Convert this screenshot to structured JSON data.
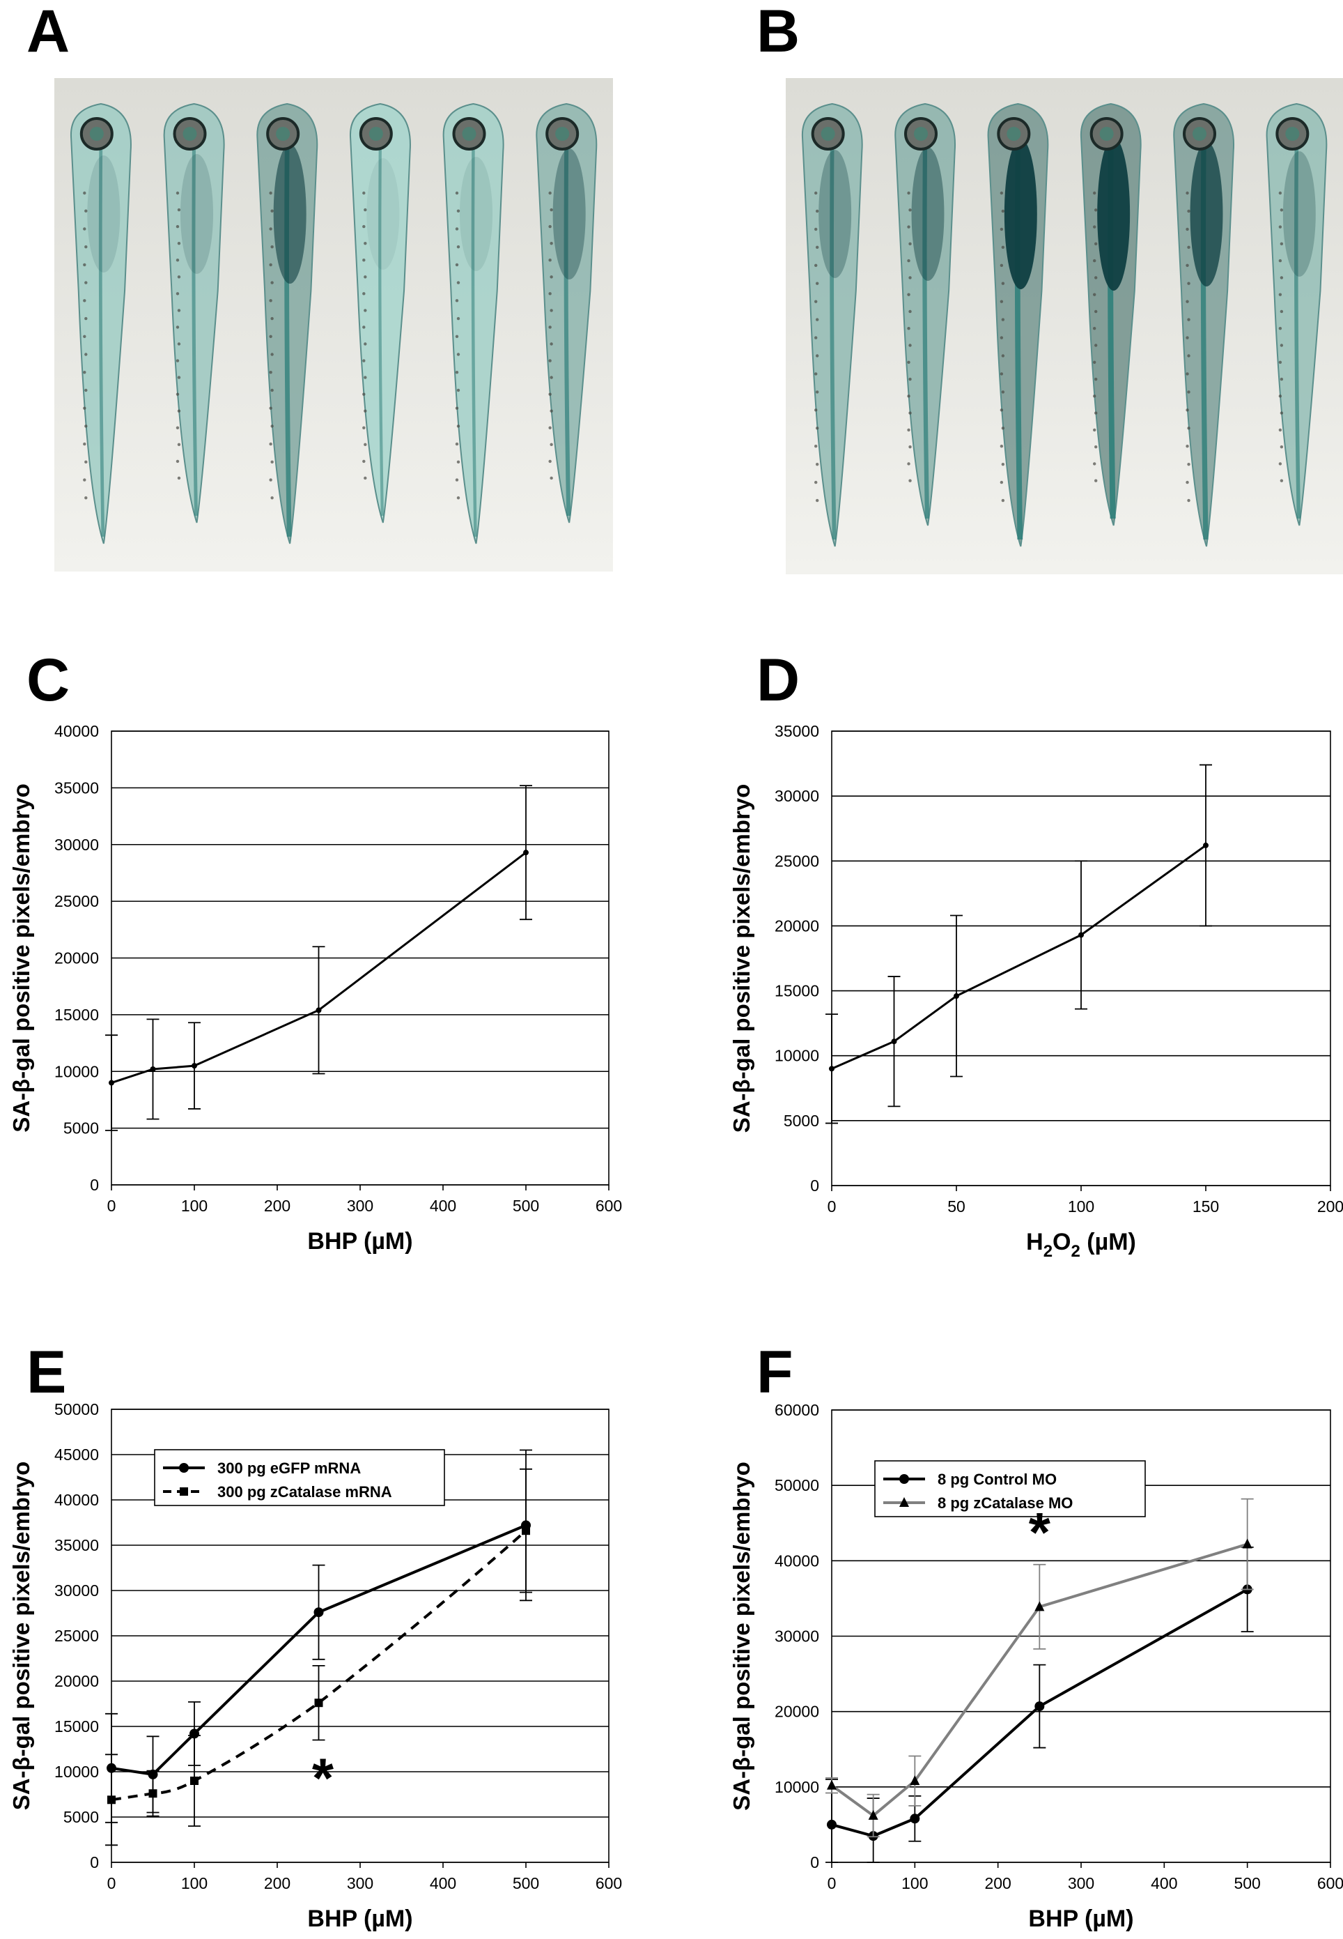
{
  "panels": {
    "A": "A",
    "B": "B",
    "C": "C",
    "D": "D",
    "E": "E",
    "F": "F"
  },
  "photos": {
    "A": {
      "larvae": 6,
      "stain_level": [
        0.35,
        0.4,
        0.75,
        0.25,
        0.3,
        0.6
      ]
    },
    "B": {
      "larvae": 6,
      "stain_level": [
        0.55,
        0.65,
        0.95,
        1.0,
        0.85,
        0.5
      ]
    }
  },
  "colors": {
    "stain": "#1f6f6f",
    "series_black": "#000000",
    "series_gray": "#808080",
    "grid": "#000000"
  },
  "chart_data": [
    {
      "id": "C",
      "type": "line",
      "xlabel": "BHP (µM)",
      "ylabel": "SA-β-gal positive pixels/embryo",
      "xlim": [
        0,
        600
      ],
      "ylim": [
        0,
        40000
      ],
      "xticks": [
        0,
        100,
        200,
        300,
        400,
        500,
        600
      ],
      "yticks": [
        0,
        5000,
        10000,
        15000,
        20000,
        25000,
        30000,
        35000,
        40000
      ],
      "xtick_labels": [
        "0",
        "100",
        "200",
        "300",
        "400",
        "500",
        "600"
      ],
      "ytick_labels": [
        "0",
        "5000",
        "10000",
        "15000",
        "20000",
        "25000",
        "30000",
        "35000",
        "40000"
      ],
      "grid": "horizontal",
      "series": [
        {
          "x": [
            0,
            50,
            100,
            250,
            500
          ],
          "y": [
            9000,
            10200,
            10500,
            15400,
            29300
          ],
          "err": [
            4200,
            4400,
            3800,
            5600,
            5900
          ],
          "marker": "circle",
          "dash": false,
          "color": "#000000"
        }
      ]
    },
    {
      "id": "D",
      "type": "line",
      "xlabel": "H2O2 (µM)",
      "xlabel_parts": [
        "H",
        "2",
        "O",
        "2",
        " (µM)"
      ],
      "ylabel": "SA-β-gal positive pixels/embryo",
      "xlim": [
        0,
        200
      ],
      "ylim": [
        0,
        35000
      ],
      "xticks": [
        0,
        50,
        100,
        150,
        200
      ],
      "yticks": [
        0,
        5000,
        10000,
        15000,
        20000,
        25000,
        30000,
        35000
      ],
      "xtick_labels": [
        "0",
        "50",
        "100",
        "150",
        "200"
      ],
      "ytick_labels": [
        "0",
        "5000",
        "10000",
        "15000",
        "20000",
        "25000",
        "30000",
        "35000"
      ],
      "grid": "horizontal",
      "series": [
        {
          "x": [
            0,
            25,
            50,
            100,
            150
          ],
          "y": [
            9000,
            11100,
            14600,
            19300,
            26200
          ],
          "err": [
            4200,
            5000,
            6200,
            5700,
            6200
          ],
          "marker": "circle",
          "dash": false,
          "color": "#000000"
        }
      ]
    },
    {
      "id": "E",
      "type": "line",
      "xlabel": "BHP (µM)",
      "ylabel": "SA-β-gal positive pixels/embryo",
      "xlim": [
        0,
        600
      ],
      "ylim": [
        0,
        50000
      ],
      "xticks": [
        0,
        100,
        200,
        300,
        400,
        500,
        600
      ],
      "yticks": [
        0,
        5000,
        10000,
        15000,
        20000,
        25000,
        30000,
        35000,
        40000,
        45000,
        50000
      ],
      "xtick_labels": [
        "0",
        "100",
        "200",
        "300",
        "400",
        "500",
        "600"
      ],
      "ytick_labels": [
        "0",
        "5000",
        "10000",
        "15000",
        "20000",
        "25000",
        "30000",
        "35000",
        "40000",
        "45000",
        "50000"
      ],
      "grid": "horizontal",
      "legend": "top-left",
      "annotation": {
        "text": "*",
        "x": 255,
        "y": 9500
      },
      "series": [
        {
          "name": "300 pg eGFP mRNA",
          "x": [
            0,
            50,
            100,
            250,
            500
          ],
          "y": [
            10400,
            9700,
            14200,
            27600,
            37200
          ],
          "err": [
            6000,
            4200,
            3500,
            5200,
            8300
          ],
          "marker": "circle",
          "dash": false,
          "color": "#000000"
        },
        {
          "name": "300 pg zCatalase mRNA",
          "x": [
            0,
            50,
            100,
            250,
            500
          ],
          "y": [
            6900,
            7600,
            9000,
            17600,
            36600
          ],
          "err": [
            5000,
            2500,
            5000,
            4100,
            6800
          ],
          "marker": "square",
          "dash": true,
          "color": "#000000"
        }
      ]
    },
    {
      "id": "F",
      "type": "line",
      "xlabel": "BHP (µM)",
      "ylabel": "SA-β-gal positive pixels/embryo",
      "xlim": [
        0,
        600
      ],
      "ylim": [
        0,
        60000
      ],
      "xticks": [
        0,
        100,
        200,
        300,
        400,
        500,
        600
      ],
      "yticks": [
        0,
        10000,
        20000,
        30000,
        40000,
        50000,
        60000
      ],
      "xtick_labels": [
        "0",
        "100",
        "200",
        "300",
        "400",
        "500",
        "600"
      ],
      "ytick_labels": [
        "0",
        "10000",
        "20000",
        "30000",
        "40000",
        "50000",
        "60000"
      ],
      "grid": "horizontal",
      "legend": "top-left",
      "annotation": {
        "text": "*",
        "x": 250,
        "y": 44000
      },
      "series": [
        {
          "name": "8 pg Control MO",
          "x": [
            0,
            50,
            100,
            250,
            500
          ],
          "y": [
            5000,
            3500,
            5800,
            20700,
            36200
          ],
          "err": [
            6000,
            5000,
            3000,
            5500,
            5600
          ],
          "marker": "circle",
          "dash": false,
          "color": "#000000"
        },
        {
          "name": "8 pg zCatalase MO",
          "x": [
            0,
            50,
            100,
            250,
            500
          ],
          "y": [
            10200,
            6200,
            10800,
            33900,
            42200
          ],
          "err": [
            1000,
            2800,
            3300,
            5600,
            6000
          ],
          "marker": "triangle",
          "dash": false,
          "color": "#808080"
        }
      ]
    }
  ]
}
